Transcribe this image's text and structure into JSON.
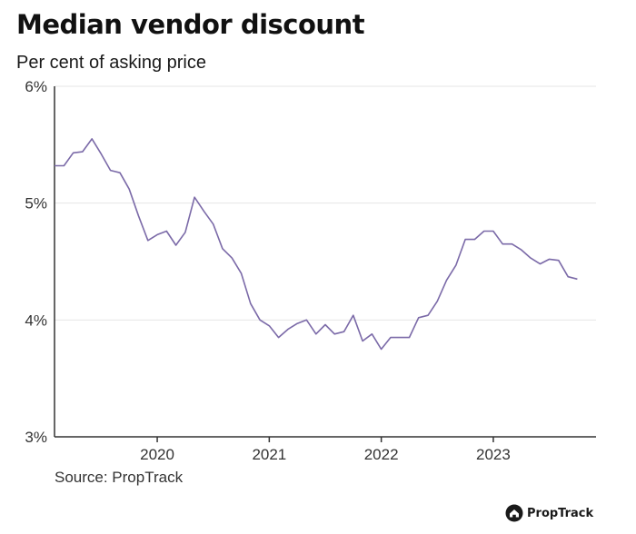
{
  "chart_data": {
    "type": "line",
    "title": "Median vendor discount",
    "subtitle": "Per cent of asking price",
    "ylim": [
      3,
      6
    ],
    "y_ticks": [
      3,
      4,
      5,
      6
    ],
    "y_tick_labels": [
      "3%",
      "4%",
      "5%",
      "6%"
    ],
    "x_range": [
      2019.083,
      2023.917
    ],
    "x_ticks": [
      2020,
      2021,
      2022,
      2023
    ],
    "x_tick_labels": [
      "2020",
      "2021",
      "2022",
      "2023"
    ],
    "grid": "horizontal",
    "line_color": "#7b6aa8",
    "series": [
      {
        "name": "",
        "x": [
          2019.083,
          2019.167,
          2019.25,
          2019.333,
          2019.417,
          2019.5,
          2019.583,
          2019.667,
          2019.75,
          2019.833,
          2019.917,
          2020.0,
          2020.083,
          2020.167,
          2020.25,
          2020.333,
          2020.417,
          2020.5,
          2020.583,
          2020.667,
          2020.75,
          2020.833,
          2020.917,
          2021.0,
          2021.083,
          2021.167,
          2021.25,
          2021.333,
          2021.417,
          2021.5,
          2021.583,
          2021.667,
          2021.75,
          2021.833,
          2021.917,
          2022.0,
          2022.083,
          2022.167,
          2022.25,
          2022.333,
          2022.417,
          2022.5,
          2022.583,
          2022.667,
          2022.75,
          2022.833,
          2022.917,
          2023.0,
          2023.083,
          2023.167,
          2023.25,
          2023.333,
          2023.417,
          2023.5,
          2023.583,
          2023.667,
          2023.75
        ],
        "values": [
          5.32,
          5.32,
          5.43,
          5.44,
          5.55,
          5.42,
          5.28,
          5.26,
          5.12,
          4.89,
          4.68,
          4.73,
          4.76,
          4.64,
          4.75,
          5.05,
          4.93,
          4.82,
          4.61,
          4.53,
          4.4,
          4.14,
          4.0,
          3.95,
          3.85,
          3.92,
          3.97,
          4.0,
          3.88,
          3.96,
          3.88,
          3.9,
          4.04,
          3.82,
          3.88,
          3.75,
          3.85,
          3.85,
          3.85,
          4.02,
          4.04,
          4.16,
          4.34,
          4.47,
          4.69,
          4.69,
          4.76,
          4.76,
          4.65,
          4.65,
          4.6,
          4.53,
          4.48,
          4.52,
          4.51,
          4.37,
          4.35
        ]
      }
    ]
  },
  "source": "Source: PropTrack",
  "brand": {
    "name": "PropTrack",
    "icon": "house-logo-icon"
  }
}
